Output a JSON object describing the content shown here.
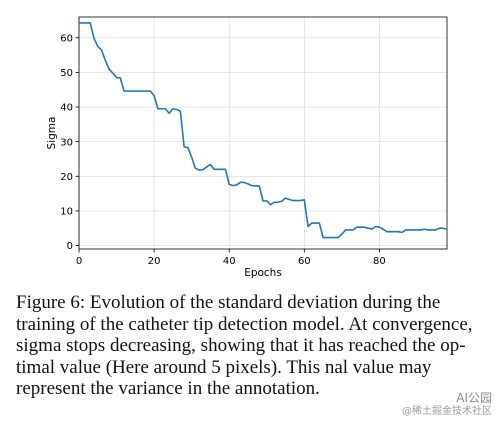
{
  "chart_data": {
    "type": "line",
    "xlabel": "Epochs",
    "ylabel": "Sigma",
    "xlim": [
      0,
      98
    ],
    "ylim": [
      -1,
      66
    ],
    "xticks": [
      0,
      20,
      40,
      60,
      80
    ],
    "yticks": [
      0,
      10,
      20,
      30,
      40,
      50,
      60
    ],
    "grid": true,
    "color": "#1f77b4",
    "series": [
      {
        "x": [
          0,
          1,
          2,
          3,
          4,
          5,
          6,
          7,
          8,
          9,
          10,
          11,
          12,
          13,
          14,
          15,
          16,
          17,
          18,
          19,
          20,
          21,
          22,
          23,
          24,
          25,
          26,
          27,
          28,
          29,
          30,
          31,
          32,
          33,
          34,
          35,
          36,
          37,
          38,
          39,
          40,
          41,
          42,
          43,
          44,
          45,
          46,
          47,
          48,
          49,
          50,
          51,
          52,
          53,
          54,
          55,
          56,
          57,
          58,
          59,
          60,
          61,
          62,
          63,
          64,
          65,
          66,
          67,
          68,
          69,
          70,
          71,
          72,
          73,
          74,
          75,
          76,
          77,
          78,
          79,
          80,
          81,
          82,
          83,
          84,
          85,
          86,
          87,
          88,
          89,
          90,
          91,
          92,
          93,
          94,
          95,
          96,
          97,
          98
        ],
        "y": [
          64.3,
          64.3,
          64.3,
          64.3,
          59.8,
          57.5,
          56.5,
          53.5,
          51,
          49.8,
          48.5,
          48.4,
          44.6,
          44.6,
          44.6,
          44.6,
          44.6,
          44.6,
          44.6,
          44.6,
          43.3,
          39.5,
          39.5,
          39.5,
          38.2,
          39.5,
          39.3,
          38.8,
          28.5,
          28.3,
          25.5,
          22.3,
          21.8,
          21.9,
          22.7,
          23.4,
          22,
          22,
          22,
          22,
          17.7,
          17.3,
          17.5,
          18.3,
          18.2,
          17.8,
          17.3,
          17.2,
          17.2,
          12.9,
          12.9,
          11.8,
          12.5,
          12.5,
          12.8,
          13.7,
          13.3,
          13,
          13,
          13,
          13.2,
          5.5,
          6.5,
          6.5,
          6.5,
          2.3,
          2.3,
          2.3,
          2.3,
          2.3,
          3.3,
          4.5,
          4.5,
          4.5,
          5.3,
          5.3,
          5.3,
          5,
          4.8,
          5.5,
          5.3,
          4.7,
          4,
          4,
          4,
          4,
          3.8,
          4.5,
          4.5,
          4.5,
          4.5,
          4.5,
          4.7,
          4.5,
          4.5,
          4.5,
          5,
          5,
          4.7
        ]
      }
    ]
  },
  "caption": {
    "lines": [
      "Figure 6:  Evolution of the standard deviation during the",
      "training of the catheter tip detection model. At convergence,",
      "sigma stops decreasing, showing that it has reached the op-",
      "timal value (Here around 5 pixels).  This   nal value may",
      "represent the variance in the annotation."
    ]
  },
  "watermark": {
    "line1": "AI公园",
    "line2": "@稀土掘金技术社区"
  }
}
